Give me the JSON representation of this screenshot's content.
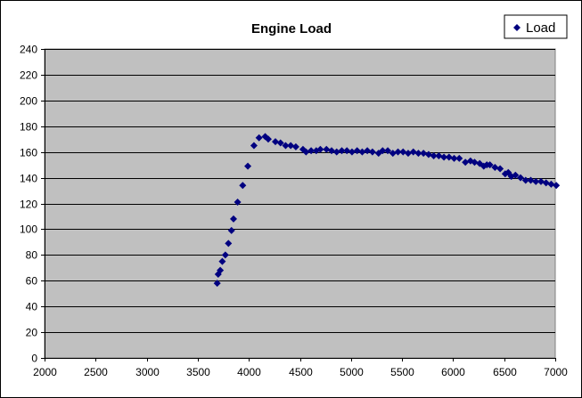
{
  "chart_data": {
    "type": "scatter",
    "title": "Engine Load",
    "xlabel": "",
    "ylabel": "",
    "xlim": [
      2000,
      7000
    ],
    "ylim": [
      0,
      240
    ],
    "xticks": [
      2000,
      2500,
      3000,
      3500,
      4000,
      4500,
      5000,
      5500,
      6000,
      6500,
      7000
    ],
    "yticks": [
      0,
      20,
      40,
      60,
      80,
      100,
      120,
      140,
      160,
      180,
      200,
      220,
      240
    ],
    "grid": "horizontal",
    "legend": "top-right",
    "plot_background": "#c0c0c0",
    "marker": "diamond",
    "series": [
      {
        "name": "Load",
        "color": "#000080",
        "points": [
          [
            3690,
            58
          ],
          [
            3700,
            65
          ],
          [
            3720,
            68
          ],
          [
            3740,
            75
          ],
          [
            3770,
            80
          ],
          [
            3800,
            89
          ],
          [
            3830,
            99
          ],
          [
            3850,
            108
          ],
          [
            3890,
            121
          ],
          [
            3940,
            134
          ],
          [
            3990,
            149
          ],
          [
            4050,
            165
          ],
          [
            4100,
            171
          ],
          [
            4160,
            172
          ],
          [
            4190,
            170
          ],
          [
            4260,
            168
          ],
          [
            4310,
            167
          ],
          [
            4360,
            165
          ],
          [
            4410,
            165
          ],
          [
            4460,
            164
          ],
          [
            4530,
            162
          ],
          [
            4560,
            160
          ],
          [
            4610,
            161
          ],
          [
            4660,
            161
          ],
          [
            4700,
            162
          ],
          [
            4760,
            162
          ],
          [
            4810,
            161
          ],
          [
            4860,
            160
          ],
          [
            4910,
            161
          ],
          [
            4960,
            161
          ],
          [
            5010,
            160
          ],
          [
            5060,
            161
          ],
          [
            5110,
            160
          ],
          [
            5160,
            161
          ],
          [
            5210,
            160
          ],
          [
            5270,
            159
          ],
          [
            5310,
            161
          ],
          [
            5360,
            161
          ],
          [
            5410,
            159
          ],
          [
            5460,
            160
          ],
          [
            5510,
            160
          ],
          [
            5560,
            159
          ],
          [
            5610,
            160
          ],
          [
            5660,
            159
          ],
          [
            5710,
            159
          ],
          [
            5760,
            158
          ],
          [
            5810,
            157
          ],
          [
            5860,
            157
          ],
          [
            5910,
            156
          ],
          [
            5960,
            156
          ],
          [
            6010,
            155
          ],
          [
            6060,
            155
          ],
          [
            6120,
            152
          ],
          [
            6170,
            153
          ],
          [
            6210,
            152
          ],
          [
            6260,
            151
          ],
          [
            6300,
            149
          ],
          [
            6330,
            150
          ],
          [
            6360,
            150
          ],
          [
            6410,
            148
          ],
          [
            6460,
            147
          ],
          [
            6510,
            143
          ],
          [
            6540,
            144
          ],
          [
            6570,
            141
          ],
          [
            6610,
            142
          ],
          [
            6660,
            140
          ],
          [
            6710,
            138
          ],
          [
            6760,
            138
          ],
          [
            6810,
            137
          ],
          [
            6860,
            137
          ],
          [
            6910,
            136
          ],
          [
            6960,
            135
          ],
          [
            7010,
            134
          ]
        ]
      }
    ]
  }
}
